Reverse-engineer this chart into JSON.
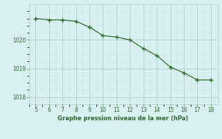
{
  "x_data": [
    5,
    6,
    7,
    8,
    9,
    10,
    11,
    12,
    13,
    14,
    15,
    16,
    17,
    18
  ],
  "y_data": [
    1020.75,
    1020.7,
    1020.7,
    1020.65,
    1020.45,
    1020.15,
    1020.1,
    1020.0,
    1019.7,
    1019.45,
    1019.05,
    1018.85,
    1018.6,
    1018.6
  ],
  "line_color": "#2d6a2d",
  "marker_color": "#2d6a2d",
  "background_color": "#d8f0f0",
  "grid_color": "#aacece",
  "grid_color_minor": "#c8e8e8",
  "xlabel": "Graphe pression niveau de la mer (hPa)",
  "xlabel_color": "#2d6a2d",
  "tick_color": "#2d6a2d",
  "ylim": [
    1017.75,
    1021.25
  ],
  "xlim": [
    4.5,
    18.5
  ],
  "yticks": [
    1018,
    1019,
    1020
  ],
  "xticks": [
    5,
    6,
    7,
    8,
    9,
    10,
    11,
    12,
    13,
    14,
    15,
    16,
    17,
    18
  ],
  "figsize": [
    3.2,
    2.0
  ],
  "dpi": 100
}
